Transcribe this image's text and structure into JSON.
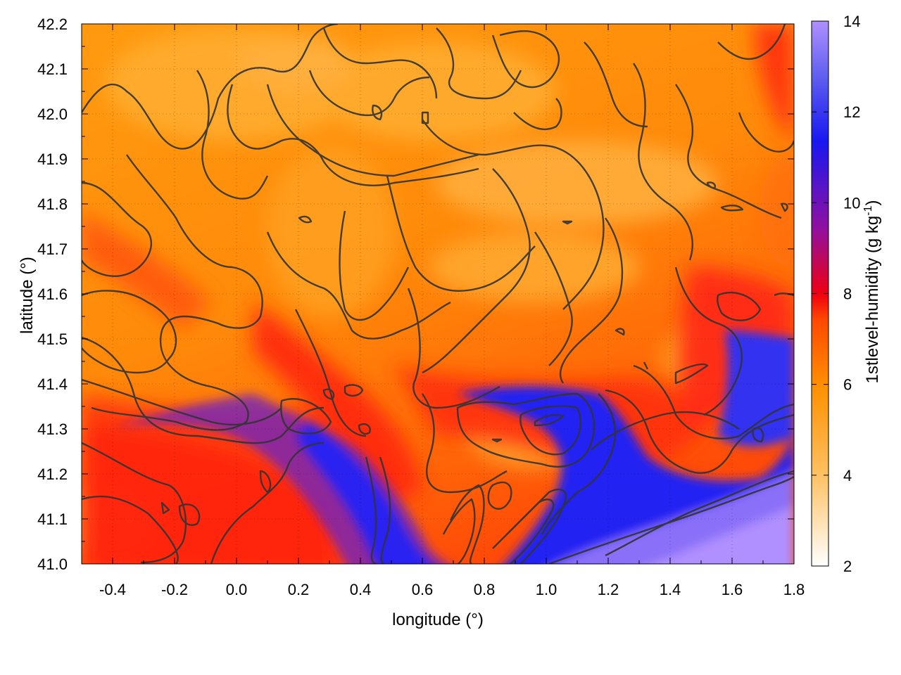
{
  "chart_data": {
    "type": "heatmap",
    "title": "",
    "xlabel": "longitude (°)",
    "ylabel": "latitude (°)",
    "xlim": [
      -0.5,
      1.8
    ],
    "ylim": [
      41.0,
      42.2
    ],
    "x_ticks": [
      "-0.4",
      "-0.2",
      "0.0",
      "0.2",
      "0.4",
      "0.6",
      "0.8",
      "1.0",
      "1.2",
      "1.4",
      "1.6",
      "1.8"
    ],
    "y_ticks": [
      "41.0",
      "41.1",
      "41.2",
      "41.3",
      "41.4",
      "41.5",
      "41.6",
      "41.7",
      "41.8",
      "41.9",
      "42.0",
      "42.1",
      "42.2"
    ],
    "grid": true,
    "colorbar": {
      "label": "1stlevel-humidity (g kg",
      "label_sup": "-1",
      "label_end": ")",
      "range": [
        2,
        14
      ],
      "ticks": [
        "2",
        "4",
        "6",
        "8",
        "10",
        "12",
        "14"
      ],
      "colors": [
        "#ffffff",
        "#ffc060",
        "#ff9000",
        "#ff4000",
        "#ee0010",
        "#9010a0",
        "#1818f0",
        "#5050f0",
        "#a080ff"
      ]
    },
    "overlay": "terrain contour lines (dark grey)"
  }
}
